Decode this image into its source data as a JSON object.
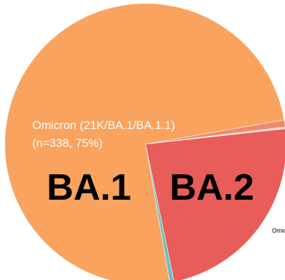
{
  "chart_data": {
    "type": "pie",
    "categories": [
      "BA.2",
      null,
      "BA.1",
      null,
      null
    ],
    "values": [
      23.5,
      0.5,
      75,
      0.8,
      0.2
    ],
    "colors": [
      "#e85d59",
      "#6dbfc0",
      "#f9a35f",
      "#f08a6e",
      "#f6d0c8"
    ],
    "annotations": [
      "Omicron (21K/BA.1/BA.1.1)",
      "(n=338, 75%)",
      "Omic"
    ]
  }
}
